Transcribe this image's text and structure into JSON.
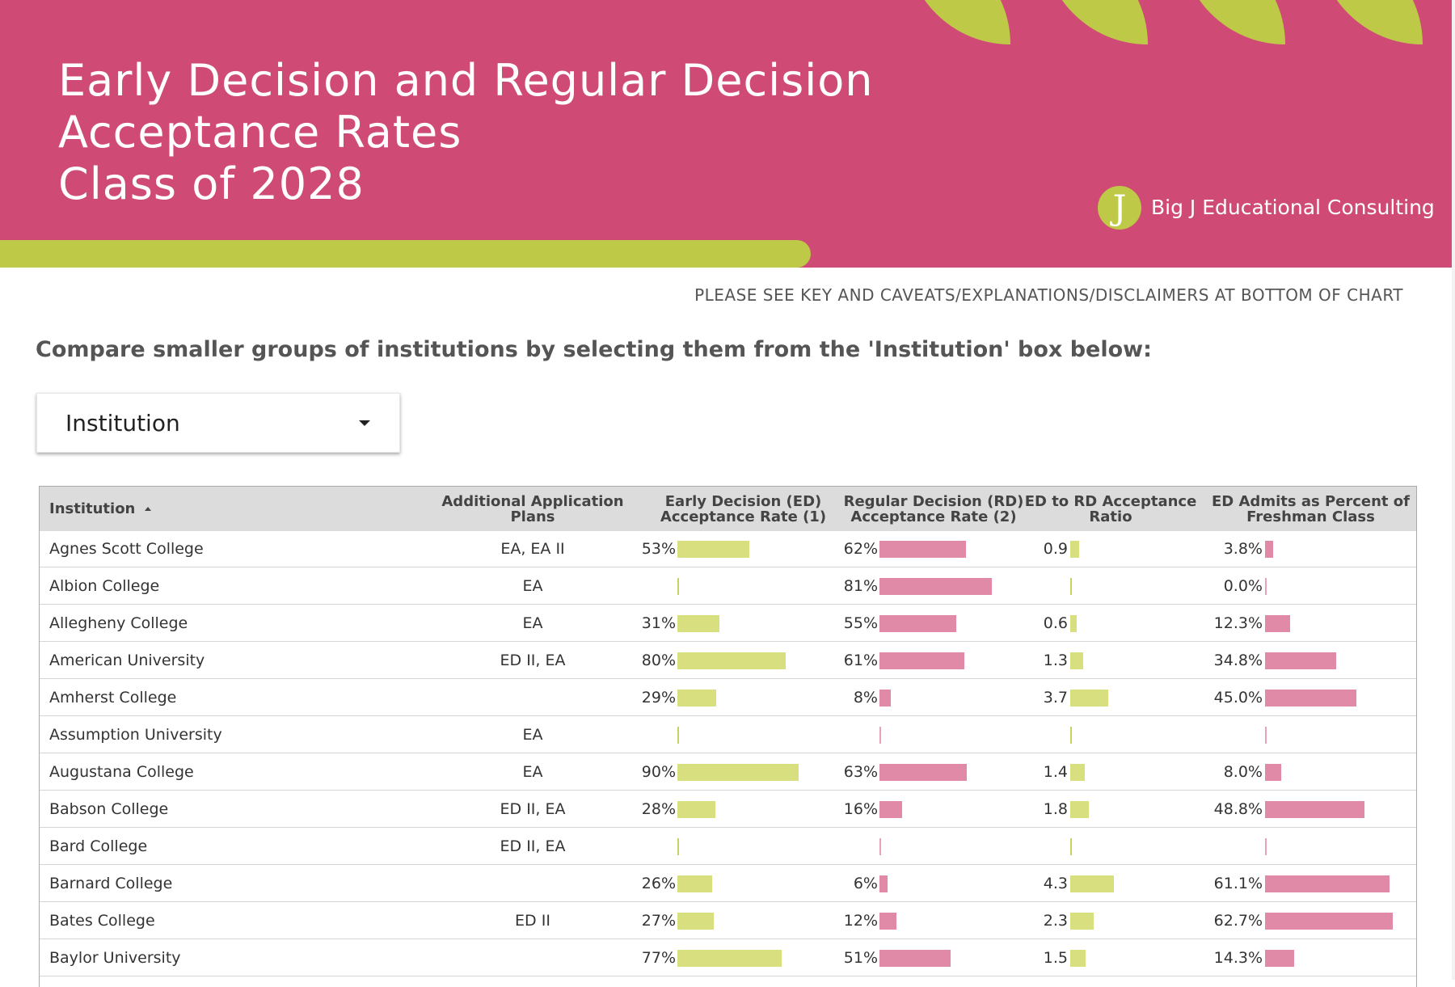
{
  "header": {
    "title_lines": [
      "Early Decision and Regular Decision",
      "Acceptance Rates",
      "Class of 2028"
    ],
    "logo_letter": "J",
    "brand_name": "Big J Educational Consulting"
  },
  "notice": "PLEASE SEE KEY AND CAVEATS/EXPLANATIONS/DISCLAIMERS AT BOTTOM OF CHART",
  "instructions": "Compare smaller groups of institutions by selecting them from the 'Institution' box below:",
  "filter": {
    "label": "Institution"
  },
  "colors": {
    "header_bg": "#cf4b75",
    "accent_green": "#bdc947",
    "ed_bar": "#d7df7f",
    "pink_bar": "#e08aa8"
  },
  "chart_data": {
    "type": "table",
    "columns": [
      "Institution",
      "Additional Application Plans",
      "Early Decision (ED) Acceptance Rate (1)",
      "Regular Decision (RD) Acceptance Rate (2)",
      "ED to RD Acceptance Ratio",
      "ED Admits as Percent of Freshman Class"
    ],
    "sorted_by": "Institution",
    "sort_direction": "ascending",
    "rows": [
      {
        "institution": "Agnes Scott College",
        "plans": "EA, EA II",
        "ed_rate": "53%",
        "ed_value": 53,
        "rd_rate": "62%",
        "rd_value": 62,
        "ratio": "0.9",
        "ratio_value": 0.9,
        "pct_class": "3.8%",
        "pct_class_value": 3.8
      },
      {
        "institution": "Albion College",
        "plans": "EA",
        "ed_rate": "",
        "ed_value": 0,
        "rd_rate": "81%",
        "rd_value": 81,
        "ratio": "",
        "ratio_value": 0,
        "pct_class": "0.0%",
        "pct_class_value": 0.0
      },
      {
        "institution": "Allegheny College",
        "plans": "EA",
        "ed_rate": "31%",
        "ed_value": 31,
        "rd_rate": "55%",
        "rd_value": 55,
        "ratio": "0.6",
        "ratio_value": 0.6,
        "pct_class": "12.3%",
        "pct_class_value": 12.3
      },
      {
        "institution": "American University",
        "plans": "ED II, EA",
        "ed_rate": "80%",
        "ed_value": 80,
        "rd_rate": "61%",
        "rd_value": 61,
        "ratio": "1.3",
        "ratio_value": 1.3,
        "pct_class": "34.8%",
        "pct_class_value": 34.8
      },
      {
        "institution": "Amherst College",
        "plans": "",
        "ed_rate": "29%",
        "ed_value": 29,
        "rd_rate": "8%",
        "rd_value": 8,
        "ratio": "3.7",
        "ratio_value": 3.7,
        "pct_class": "45.0%",
        "pct_class_value": 45.0
      },
      {
        "institution": "Assumption University",
        "plans": "EA",
        "ed_rate": "",
        "ed_value": 0,
        "rd_rate": "",
        "rd_value": 0,
        "ratio": "",
        "ratio_value": 0,
        "pct_class": "",
        "pct_class_value": 0
      },
      {
        "institution": "Augustana College",
        "plans": "EA",
        "ed_rate": "90%",
        "ed_value": 90,
        "rd_rate": "63%",
        "rd_value": 63,
        "ratio": "1.4",
        "ratio_value": 1.4,
        "pct_class": "8.0%",
        "pct_class_value": 8.0
      },
      {
        "institution": "Babson College",
        "plans": "ED II, EA",
        "ed_rate": "28%",
        "ed_value": 28,
        "rd_rate": "16%",
        "rd_value": 16,
        "ratio": "1.8",
        "ratio_value": 1.8,
        "pct_class": "48.8%",
        "pct_class_value": 48.8
      },
      {
        "institution": "Bard College",
        "plans": "ED II, EA",
        "ed_rate": "",
        "ed_value": 0,
        "rd_rate": "",
        "rd_value": 0,
        "ratio": "",
        "ratio_value": 0,
        "pct_class": "",
        "pct_class_value": 0
      },
      {
        "institution": "Barnard College",
        "plans": "",
        "ed_rate": "26%",
        "ed_value": 26,
        "rd_rate": "6%",
        "rd_value": 6,
        "ratio": "4.3",
        "ratio_value": 4.3,
        "pct_class": "61.1%",
        "pct_class_value": 61.1
      },
      {
        "institution": "Bates College",
        "plans": "ED II",
        "ed_rate": "27%",
        "ed_value": 27,
        "rd_rate": "12%",
        "rd_value": 12,
        "ratio": "2.3",
        "ratio_value": 2.3,
        "pct_class": "62.7%",
        "pct_class_value": 62.7
      },
      {
        "institution": "Baylor University",
        "plans": "",
        "ed_rate": "77%",
        "ed_value": 77,
        "rd_rate": "51%",
        "rd_value": 51,
        "ratio": "1.5",
        "ratio_value": 1.5,
        "pct_class": "14.3%",
        "pct_class_value": 14.3
      }
    ]
  }
}
